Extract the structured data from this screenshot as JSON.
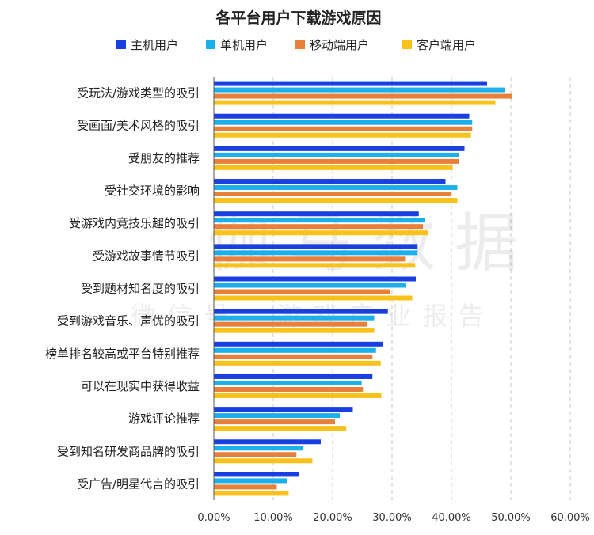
{
  "chart_data": {
    "type": "bar",
    "orientation": "horizontal",
    "title": "各平台用户下载游戏原因",
    "categories": [
      "受玩法/游戏类型的吸引",
      "受画面/美术风格的吸引",
      "受朋友的推荐",
      "受社交环境的影响",
      "受游戏内竞技乐趣的吸引",
      "受游戏故事情节吸引",
      "受到题材知名度的吸引",
      "受到游戏音乐、声优的吸引",
      "榜单排名较高或平台特别推荐",
      "可以在现实中获得收益",
      "游戏评论推荐",
      "受到知名研发商品牌的吸引",
      "受广告/明星代言的吸引"
    ],
    "series": [
      {
        "name": "主机用户",
        "color": "#1a3fe0",
        "values": [
          46.0,
          43.0,
          42.2,
          39.0,
          34.5,
          34.3,
          34.0,
          29.3,
          28.4,
          26.7,
          23.4,
          18.0,
          14.3
        ]
      },
      {
        "name": "单机用户",
        "color": "#1cb0ea",
        "values": [
          49.0,
          43.5,
          41.2,
          41.0,
          35.5,
          34.3,
          32.3,
          27.0,
          27.3,
          24.9,
          21.2,
          15.0,
          12.4
        ]
      },
      {
        "name": "移动端用户",
        "color": "#e8803a",
        "values": [
          50.2,
          43.5,
          41.2,
          40.0,
          35.2,
          32.2,
          29.7,
          25.8,
          26.7,
          25.1,
          20.4,
          13.9,
          10.6
        ]
      },
      {
        "name": "客户端用户",
        "color": "#f8c21a",
        "values": [
          47.4,
          43.3,
          40.2,
          41.0,
          36.0,
          33.9,
          33.4,
          27.0,
          28.1,
          28.2,
          22.3,
          16.6,
          12.6
        ]
      }
    ],
    "x_ticks": [
      "0.00%",
      "10.00%",
      "20.00%",
      "30.00%",
      "40.00%",
      "50.00%",
      "60.00%"
    ],
    "xlim": [
      0,
      60
    ],
    "grid": true,
    "legend_position": "top"
  },
  "watermark": {
    "line1": "伽马数据",
    "line2": "微信号：游戏产业报告"
  }
}
